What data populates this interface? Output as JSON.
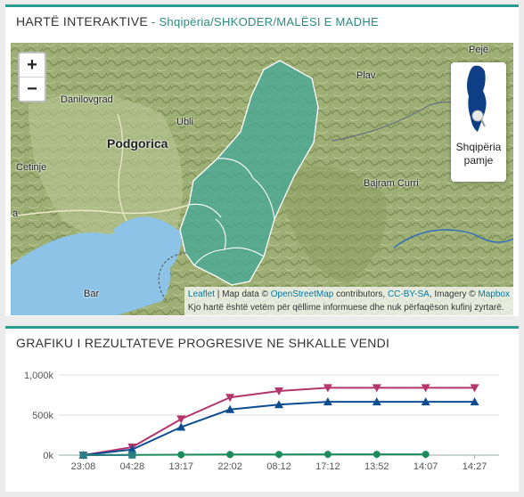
{
  "map_panel": {
    "title": "HARTË INTERAKTIVE",
    "separator": " - ",
    "breadcrumb": "Shqipëria/SHKODER/MALËSI E MADHE",
    "zoom_in_label": "+",
    "zoom_out_label": "−",
    "minimap_caption_line1": "Shqipëria",
    "minimap_caption_line2": "pamje",
    "places": {
      "pejë": "Pejë",
      "plav": "Plav",
      "danilovgrad": "Danilovgrad",
      "ubli": "Ubli",
      "podgorica": "Podgorica",
      "cetinje": "Cetinje",
      "bajram_curri": "Bajram Curri",
      "bar": "Bar",
      "edge_a": "a"
    },
    "attribution": {
      "leaflet": "Leaflet",
      "text1": " | Map data © ",
      "osm": "OpenStreetMap",
      "text2": " contributors, ",
      "license": "CC-BY-SA",
      "text3": ", Imagery © ",
      "mapbox": "Mapbox",
      "disclaimer": "Kjo hartë është vetëm për qëllime informuese dhe nuk përfaqëson kufinj zyrtarë."
    },
    "colors": {
      "region_fill": "#4aa894",
      "water": "#8cc3e6"
    }
  },
  "chart_panel": {
    "title": "GRAFIKU I REZULTATEVE PROGRESIVE NE SHKALLE VENDI"
  },
  "chart_data": {
    "type": "line",
    "categories": [
      "23:08",
      "04:28",
      "13:17",
      "22:02",
      "08:12",
      "17:12",
      "13:52",
      "14:07",
      "14:27"
    ],
    "ylim": [
      0,
      1000000
    ],
    "yticks": [
      0,
      500000,
      1000000
    ],
    "ytick_labels": [
      "0k",
      "500k",
      "1,000k"
    ],
    "grid": true,
    "series": [
      {
        "color": "#b3356b",
        "marker": "triangle-down",
        "points": [
          [
            0,
            0
          ],
          [
            1,
            100000
          ],
          [
            2,
            450000
          ],
          [
            3,
            720000
          ],
          [
            4,
            800000
          ],
          [
            5,
            840000
          ],
          [
            6,
            840000
          ],
          [
            7,
            840000
          ],
          [
            8,
            840000
          ]
        ]
      },
      {
        "color": "#0e4c92",
        "marker": "triangle-up",
        "points": [
          [
            0,
            0
          ],
          [
            1,
            70000
          ],
          [
            2,
            350000
          ],
          [
            3,
            570000
          ],
          [
            4,
            630000
          ],
          [
            5,
            665000
          ],
          [
            6,
            665000
          ],
          [
            7,
            665000
          ],
          [
            8,
            665000
          ]
        ]
      },
      {
        "color": "#1d8c5c",
        "marker": "circle",
        "points": [
          [
            0,
            0
          ],
          [
            1,
            3000
          ],
          [
            2,
            5000
          ],
          [
            3,
            8000
          ],
          [
            4,
            9000
          ],
          [
            5,
            10000
          ],
          [
            6,
            10000
          ],
          [
            7,
            10000
          ]
        ]
      },
      {
        "color": "#2a7d80",
        "marker": "square",
        "points": [
          [
            0,
            0
          ],
          [
            1,
            2000
          ]
        ]
      }
    ]
  }
}
